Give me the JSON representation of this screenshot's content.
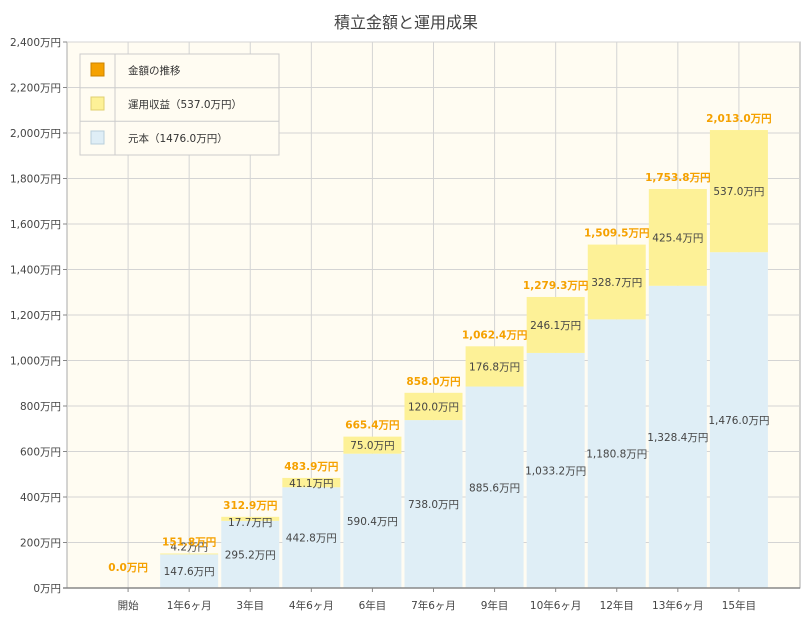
{
  "chart_data": {
    "type": "bar",
    "stacked": true,
    "title": "積立金額と運用成果",
    "xlabel": "",
    "ylabel": "",
    "unit": "万円",
    "ylim": [
      0,
      2400
    ],
    "ytick_values": [
      0,
      200,
      400,
      600,
      800,
      1000,
      1200,
      1400,
      1600,
      1800,
      2000,
      2200,
      2400
    ],
    "ytick_labels": [
      "0万円",
      "200万円",
      "400万円",
      "600万円",
      "800万円",
      "1,000万円",
      "1,200万円",
      "1,400万円",
      "1,600万円",
      "1,800万円",
      "2,000万円",
      "2,200万円",
      "2,400万円"
    ],
    "categories": [
      "開始",
      "1年6ヶ月",
      "3年目",
      "4年6ヶ月",
      "6年目",
      "7年6ヶ月",
      "9年目",
      "10年6ヶ月",
      "12年目",
      "13年6ヶ月",
      "15年目"
    ],
    "series": [
      {
        "name": "元本",
        "color": "#dfeef6",
        "values": [
          0,
          147.6,
          295.2,
          442.8,
          590.4,
          738.0,
          885.6,
          1033.2,
          1180.8,
          1328.4,
          1476.0
        ],
        "labels": [
          "",
          "147.6万円",
          "295.2万円",
          "442.8万円",
          "590.4万円",
          "738.0万円",
          "885.6万円",
          "1,033.2万円",
          "1,180.8万円",
          "1,328.4万円",
          "1,476.0万円"
        ]
      },
      {
        "name": "運用収益",
        "color": "#fdf197",
        "values": [
          0,
          4.2,
          17.7,
          41.1,
          75.0,
          120.0,
          176.8,
          246.1,
          328.7,
          425.4,
          537.0
        ],
        "labels": [
          "",
          "4.2万円",
          "17.7万円",
          "41.1万円",
          "75.0万円",
          "120.0万円",
          "176.8万円",
          "246.1万円",
          "328.7万円",
          "425.4万円",
          "537.0万円"
        ]
      }
    ],
    "totals": {
      "name": "金額の推移",
      "color": "#f5a100",
      "values": [
        0.0,
        151.8,
        312.9,
        483.9,
        665.4,
        858.0,
        1062.4,
        1279.3,
        1509.5,
        1753.8,
        2013.0
      ],
      "labels": [
        "0.0万円",
        "151.8万円",
        "312.9万円",
        "483.9万円",
        "665.4万円",
        "858.0万円",
        "1,062.4万円",
        "1,279.3万円",
        "1,509.5万円",
        "1,753.8万円",
        "2,013.0万円"
      ]
    },
    "legend": {
      "position": "top-left",
      "items": [
        {
          "label": "金額の推移",
          "color": "#f5a100"
        },
        {
          "label": "運用収益（537.0万円）",
          "color": "#fdf197"
        },
        {
          "label": "元本（1476.0万円）",
          "color": "#dfeef6"
        }
      ]
    }
  }
}
